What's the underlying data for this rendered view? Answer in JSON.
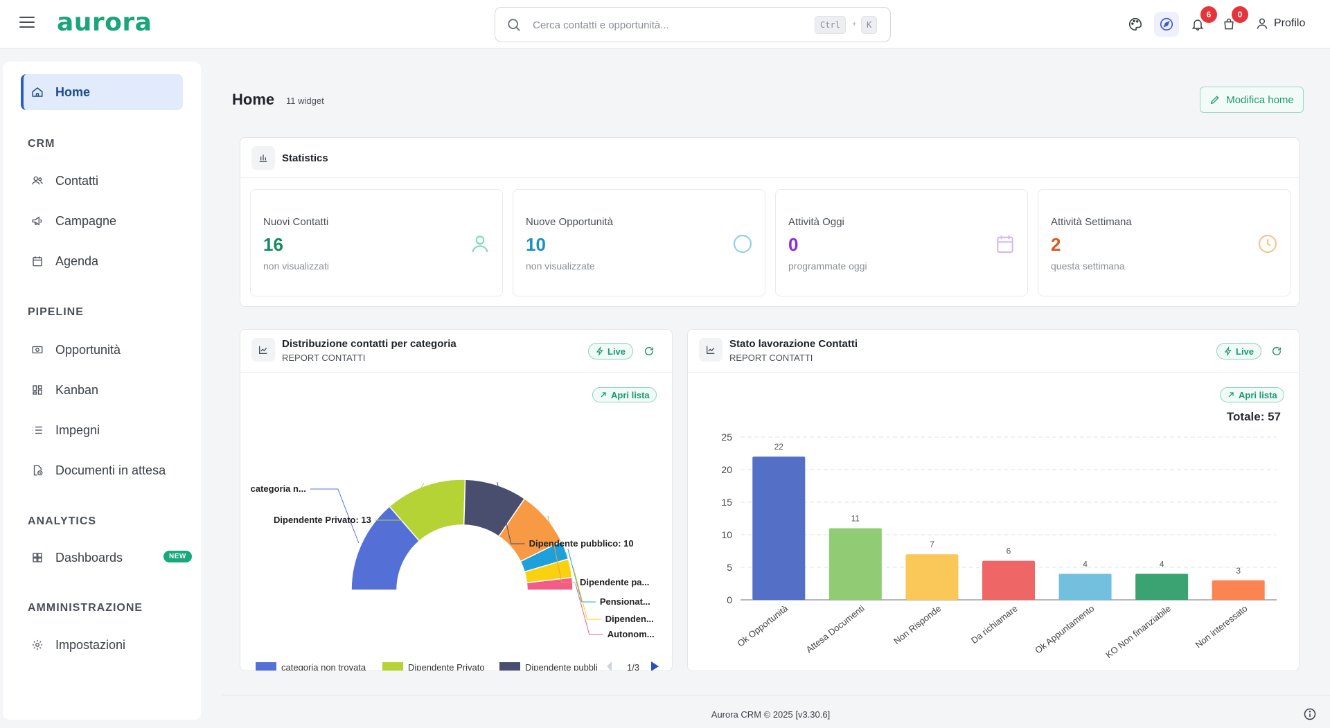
{
  "app": {
    "logo": "aurora"
  },
  "header": {
    "search_placeholder": "Cerca contatti e opportunità...",
    "kbd_ctrl": "Ctrl",
    "kbd_plus": "+",
    "kbd_k": "K",
    "notifications_count": "6",
    "cart_count": "0",
    "profile_label": "Profilo"
  },
  "sidebar": {
    "home": "Home",
    "sections": {
      "crm": "CRM",
      "pipeline": "PIPELINE",
      "analytics": "ANALYTICS",
      "admin": "AMMINISTRAZIONE"
    },
    "items": {
      "contatti": "Contatti",
      "campagne": "Campagne",
      "agenda": "Agenda",
      "opportunita": "Opportunità",
      "kanban": "Kanban",
      "impegni": "Impegni",
      "documenti": "Documenti in attesa",
      "dashboards": "Dashboards",
      "dashboards_badge": "NEW",
      "impostazioni": "Impostazioni"
    }
  },
  "page": {
    "title": "Home",
    "widget_count": "11 widget",
    "edit_button": "Modifica home"
  },
  "statistics": {
    "title": "Statistics",
    "cards": [
      {
        "label": "Nuovi Contatti",
        "value": "16",
        "sub": "non visualizzati",
        "color": "#128a5e"
      },
      {
        "label": "Nuove Opportunità",
        "value": "10",
        "sub": "non visualizzate",
        "color": "#1a8fc4"
      },
      {
        "label": "Attività Oggi",
        "value": "0",
        "sub": "programmate oggi",
        "color": "#8a2be2"
      },
      {
        "label": "Attività Settimana",
        "value": "2",
        "sub": "questa settimana",
        "color": "#e0561b"
      }
    ]
  },
  "widget_distribution": {
    "title": "Distribuzione contatti per categoria",
    "subtitle": "REPORT CONTATTI",
    "live": "Live",
    "apri_lista": "Apri lista",
    "legend_page": "1/3",
    "legend_items": [
      "categoria non trovata",
      "Dipendente Privato",
      "Dipendente pubbli"
    ]
  },
  "widget_status": {
    "title": "Stato lavorazione Contatti",
    "subtitle": "REPORT CONTATTI",
    "live": "Live",
    "apri_lista": "Apri lista",
    "total": "Totale: 57"
  },
  "footer": {
    "text": "Aurora CRM © 2025 [v3.30.6]"
  },
  "chart_data": [
    {
      "type": "pie",
      "variant": "half-donut",
      "slices": [
        {
          "label": "categoria n...",
          "value": 15,
          "color": "#5470d6"
        },
        {
          "label": "Dipendente Privato: 13",
          "value": 13,
          "color": "#b5d334"
        },
        {
          "label": "Dipendente pubblico: 10",
          "value": 10,
          "color": "#4a4e6e"
        },
        {
          "label": "Dipendente pa...",
          "value": 9,
          "color": "#f79a43"
        },
        {
          "label": "Pensionat...",
          "value": 3,
          "color": "#1ea1db"
        },
        {
          "label": "Dipenden...",
          "value": 3,
          "color": "#fad10f"
        },
        {
          "label": "Autonom...",
          "value": 2,
          "color": "#f25c86"
        }
      ]
    },
    {
      "type": "bar",
      "categories": [
        "Ok Opportunità",
        "Attesa Documenti",
        "Non Risponde",
        "Da richiamare",
        "Ok Appuntamento",
        "KO Non finanziabile",
        "Non interessato"
      ],
      "values": [
        22,
        11,
        7,
        6,
        4,
        4,
        3
      ],
      "colors": [
        "#5470c6",
        "#91cc75",
        "#fac858",
        "#ee6666",
        "#73c0de",
        "#3ba272",
        "#fc8452"
      ],
      "ylim": [
        0,
        25
      ],
      "yticks": [
        0,
        5,
        10,
        15,
        20,
        25
      ],
      "grid": true
    }
  ]
}
